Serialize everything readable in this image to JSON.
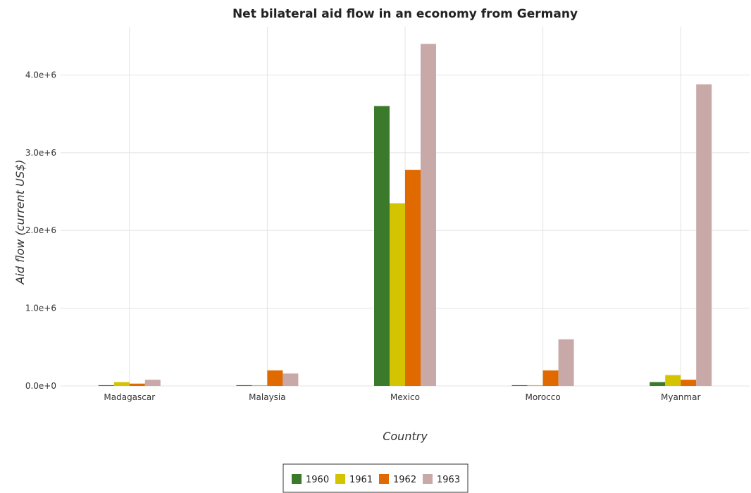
{
  "chart_data": {
    "type": "bar",
    "title": "Net bilateral aid flow in an economy from Germany",
    "xlabel": "Country",
    "ylabel": "Aid flow (current US$)",
    "categories": [
      "Madagascar",
      "Malaysia",
      "Mexico",
      "Morocco",
      "Myanmar"
    ],
    "series": [
      {
        "name": "1960",
        "color": "#3b7a2a",
        "values": [
          10000,
          10000,
          3600000,
          10000,
          50000
        ]
      },
      {
        "name": "1961",
        "color": "#d4c400",
        "values": [
          50000,
          10000,
          2350000,
          10000,
          140000
        ]
      },
      {
        "name": "1962",
        "color": "#e06a00",
        "values": [
          30000,
          200000,
          2780000,
          200000,
          80000
        ]
      },
      {
        "name": "1963",
        "color": "#c9a8a8",
        "values": [
          80000,
          160000,
          4400000,
          600000,
          3880000
        ]
      }
    ],
    "yticks": [
      0,
      1000000,
      2000000,
      3000000,
      4000000
    ],
    "ytick_labels": [
      "0.0e+0",
      "1.0e+6",
      "2.0e+6",
      "3.0e+6",
      "4.0e+6"
    ],
    "ylim": [
      0,
      4620000
    ],
    "grid": true,
    "legend_position": "bottom-center"
  }
}
